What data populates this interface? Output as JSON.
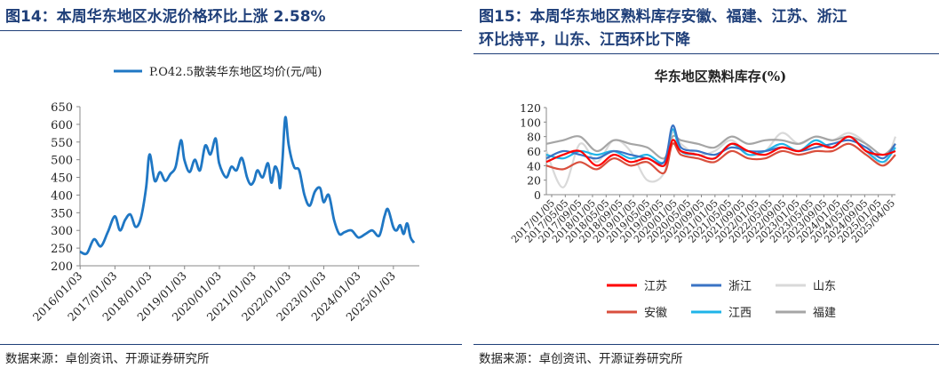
{
  "left": {
    "title": "图14：本周华东地区水泥价格环比上涨 2.58%",
    "source": "数据来源：卓创资讯、开源证券研究所"
  },
  "right": {
    "title_line1": "图15：本周华东地区熟料库存安徽、福建、江苏、浙江",
    "title_line2": "环比持平，山东、江西环比下降",
    "source": "数据来源：卓创资讯、开源证券研究所"
  },
  "colors": {
    "title": "#1f3f79",
    "cement_line": "#1f77c4",
    "jiangsu": "#ff0000",
    "zhejiang": "#3a73c4",
    "shandong": "#d9d9d9",
    "anhui": "#d94f3d",
    "jiangxi": "#1fb4e8",
    "fujian": "#a5a5a5"
  },
  "chart_data": [
    {
      "type": "line",
      "title": "",
      "xlabel": "",
      "ylabel": "",
      "ylim": [
        200,
        650
      ],
      "yticks": [
        200,
        250,
        300,
        350,
        400,
        450,
        500,
        550,
        600,
        650
      ],
      "xticks": [
        "2016/01/03",
        "2017/01/03",
        "2018/01/03",
        "2019/01/03",
        "2020/01/03",
        "2021/01/03",
        "2022/01/03",
        "2023/01/03",
        "2024/01/03",
        "2025/01/03"
      ],
      "legend_position": "top",
      "grid": false,
      "series": [
        {
          "name": "P.O42.5散装华东地区均价(元/吨)",
          "x": [
            2016.0,
            2016.2,
            2016.4,
            2016.6,
            2016.8,
            2017.0,
            2017.15,
            2017.3,
            2017.45,
            2017.6,
            2017.75,
            2017.9,
            2018.0,
            2018.15,
            2018.3,
            2018.45,
            2018.6,
            2018.75,
            2018.9,
            2019.0,
            2019.15,
            2019.3,
            2019.45,
            2019.6,
            2019.75,
            2019.9,
            2020.0,
            2020.2,
            2020.35,
            2020.5,
            2020.65,
            2020.8,
            2020.9,
            2021.0,
            2021.1,
            2021.25,
            2021.4,
            2021.5,
            2021.6,
            2021.7,
            2021.75,
            2021.82,
            2021.9,
            2022.0,
            2022.15,
            2022.3,
            2022.45,
            2022.6,
            2022.75,
            2022.9,
            2023.0,
            2023.15,
            2023.3,
            2023.45,
            2023.6,
            2023.8,
            2024.0,
            2024.2,
            2024.4,
            2024.6,
            2024.75,
            2024.85,
            2025.0,
            2025.1,
            2025.2,
            2025.3,
            2025.4,
            2025.5,
            2025.6
          ],
          "values": [
            240,
            235,
            275,
            255,
            295,
            340,
            300,
            330,
            345,
            310,
            335,
            420,
            515,
            440,
            465,
            440,
            460,
            480,
            555,
            500,
            465,
            500,
            470,
            540,
            515,
            560,
            490,
            450,
            480,
            470,
            505,
            450,
            430,
            440,
            470,
            450,
            490,
            435,
            480,
            460,
            420,
            500,
            620,
            540,
            480,
            470,
            400,
            370,
            410,
            420,
            380,
            400,
            330,
            290,
            295,
            300,
            280,
            290,
            300,
            285,
            340,
            360,
            310,
            300,
            315,
            290,
            320,
            280,
            265
          ]
        }
      ]
    },
    {
      "type": "line",
      "title": "华东地区熟料库存(%)",
      "xlabel": "",
      "ylabel": "",
      "ylim": [
        0,
        120
      ],
      "yticks": [
        0,
        20,
        40,
        60,
        80,
        100,
        120
      ],
      "xticks": [
        "2017/01/05",
        "2017/05/05",
        "2017/09/05",
        "2018/01/05",
        "2018/05/05",
        "2018/09/05",
        "2019/01/05",
        "2019/05/05",
        "2019/09/05",
        "2020/01/05",
        "2020/05/05",
        "2020/09/05",
        "2021/01/05",
        "2021/05/05",
        "2021/09/05",
        "2022/01/05",
        "2022/05/05",
        "2022/09/05",
        "2023/01/05",
        "2023/05/05",
        "2023/09/05",
        "2024/01/05",
        "2024/05/05",
        "2024/09/05",
        "2025/01/05",
        "2025/04/05"
      ],
      "legend_position": "bottom",
      "grid": false,
      "x": [
        2017.0,
        2017.4,
        2017.8,
        2018.2,
        2018.6,
        2019.0,
        2019.4,
        2019.8,
        2020.0,
        2020.2,
        2020.6,
        2021.0,
        2021.4,
        2021.8,
        2022.2,
        2022.6,
        2023.0,
        2023.4,
        2023.8,
        2024.2,
        2024.6,
        2025.0,
        2025.3
      ],
      "series": [
        {
          "name": "江苏",
          "values": [
            45,
            55,
            60,
            40,
            55,
            45,
            50,
            40,
            75,
            60,
            55,
            50,
            70,
            60,
            55,
            65,
            60,
            70,
            65,
            80,
            60,
            55,
            60
          ]
        },
        {
          "name": "浙江",
          "values": [
            50,
            60,
            55,
            50,
            60,
            55,
            50,
            45,
            95,
            65,
            60,
            55,
            65,
            60,
            60,
            65,
            60,
            65,
            70,
            75,
            65,
            50,
            70
          ]
        },
        {
          "name": "山东",
          "values": [
            60,
            10,
            70,
            45,
            75,
            60,
            20,
            30,
            85,
            70,
            55,
            60,
            75,
            55,
            60,
            85,
            70,
            80,
            75,
            85,
            70,
            40,
            80
          ]
        },
        {
          "name": "安徽",
          "values": [
            40,
            35,
            45,
            35,
            50,
            40,
            45,
            30,
            70,
            55,
            50,
            45,
            60,
            50,
            50,
            60,
            55,
            60,
            60,
            70,
            55,
            40,
            55
          ]
        },
        {
          "name": "江西",
          "values": [
            55,
            50,
            60,
            55,
            60,
            50,
            55,
            45,
            90,
            60,
            55,
            50,
            70,
            55,
            60,
            70,
            60,
            75,
            65,
            80,
            60,
            45,
            65
          ]
        },
        {
          "name": "福建",
          "values": [
            70,
            75,
            80,
            60,
            75,
            70,
            65,
            50,
            80,
            75,
            70,
            65,
            80,
            70,
            75,
            75,
            70,
            80,
            75,
            80,
            70,
            55,
            70
          ]
        }
      ]
    }
  ]
}
